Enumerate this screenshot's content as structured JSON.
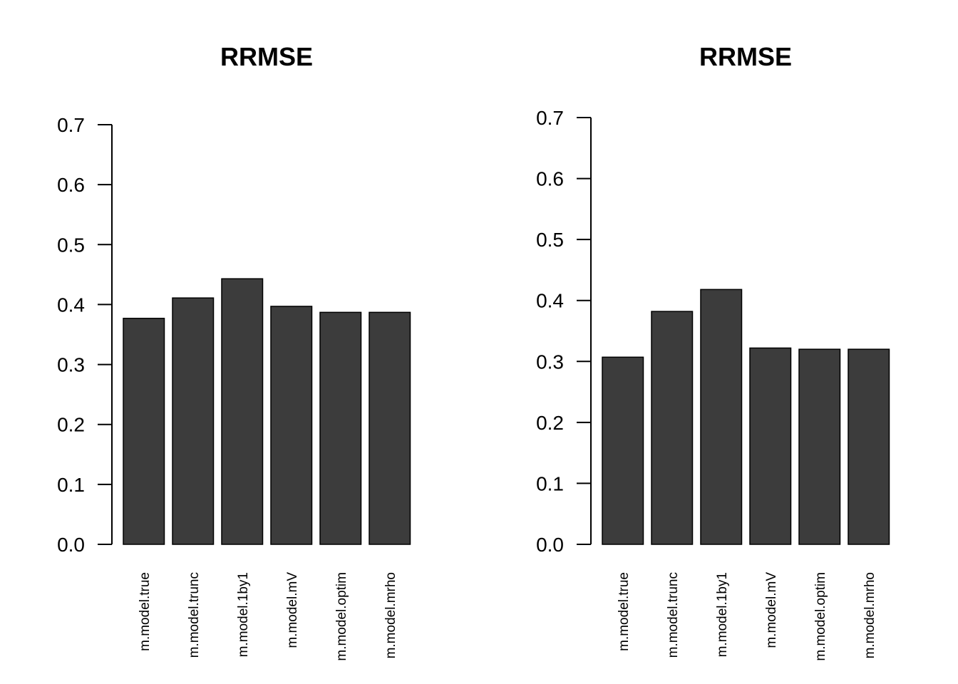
{
  "chart_data": [
    {
      "type": "bar",
      "title": "RRMSE",
      "xlabel": "",
      "ylabel": "",
      "categories": [
        "m.model.true",
        "m.model.trunc",
        "m.model.1by1",
        "m.model.mV",
        "m.model.optim",
        "m.model.mrho"
      ],
      "values": [
        0.377,
        0.411,
        0.443,
        0.397,
        0.387,
        0.387
      ],
      "ylim": [
        0,
        0.7
      ],
      "yticks": [
        "0.0",
        "0.1",
        "0.2",
        "0.3",
        "0.4",
        "0.5",
        "0.6",
        "0.7"
      ],
      "grid": false,
      "bar_color": "#3c3c3c"
    },
    {
      "type": "bar",
      "title": "RRMSE",
      "xlabel": "",
      "ylabel": "",
      "categories": [
        "m.model.true",
        "m.model.trunc",
        "m.model.1by1",
        "m.model.mV",
        "m.model.optim",
        "m.model.mrho"
      ],
      "values": [
        0.307,
        0.382,
        0.418,
        0.322,
        0.32,
        0.32
      ],
      "ylim": [
        0,
        0.7
      ],
      "yticks": [
        "0.0",
        "0.1",
        "0.2",
        "0.3",
        "0.4",
        "0.5",
        "0.6",
        "0.7"
      ],
      "grid": false,
      "bar_color": "#3c3c3c"
    }
  ]
}
